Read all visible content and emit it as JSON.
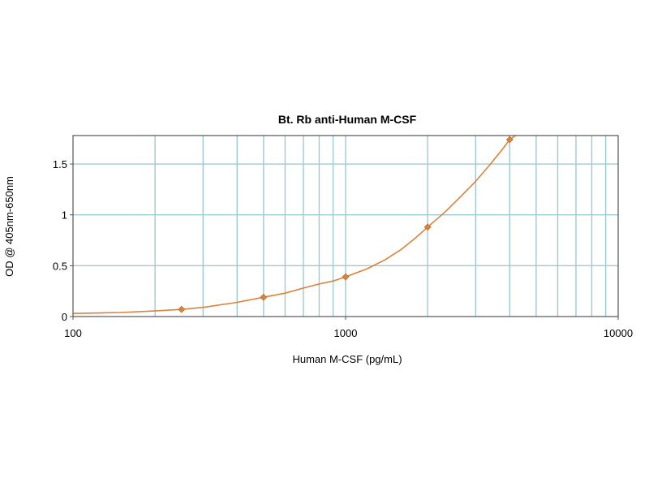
{
  "chart_data": {
    "type": "line",
    "title": "Bt. Rb anti-Human M-CSF",
    "xlabel": "Human M-CSF (pg/mL)",
    "ylabel": "OD @ 405nm-650nm",
    "xscale": "log",
    "xlim": [
      100,
      10000
    ],
    "ylim": [
      0,
      1.78
    ],
    "xticks": [
      100,
      1000,
      10000
    ],
    "xtick_labels": [
      "100",
      "1000",
      "10000"
    ],
    "yticks": [
      0,
      0.5,
      1,
      1.5
    ],
    "ytick_labels": [
      "0",
      "0.5",
      "1",
      "1.5"
    ],
    "grid": true,
    "legend": "none",
    "series": [
      {
        "x": [
          250,
          500,
          1000,
          2000,
          4000
        ],
        "y": [
          0.07,
          0.19,
          0.39,
          0.88,
          1.74
        ]
      }
    ],
    "fit_curve": {
      "x": [
        100,
        150,
        200,
        250,
        300,
        400,
        500,
        600,
        700,
        800,
        900,
        1000,
        1200,
        1400,
        1600,
        1800,
        2000,
        2300,
        2600,
        3000,
        3400,
        3800,
        4000,
        4200
      ],
      "y": [
        0.03,
        0.04,
        0.055,
        0.07,
        0.09,
        0.14,
        0.19,
        0.23,
        0.28,
        0.32,
        0.35,
        0.39,
        0.47,
        0.56,
        0.66,
        0.77,
        0.88,
        1.02,
        1.16,
        1.33,
        1.5,
        1.66,
        1.74,
        1.79
      ]
    },
    "colors": {
      "line": "#d9833a",
      "marker": "#d9833a",
      "grid": "#9fc9d4",
      "frame": "#555555"
    }
  }
}
